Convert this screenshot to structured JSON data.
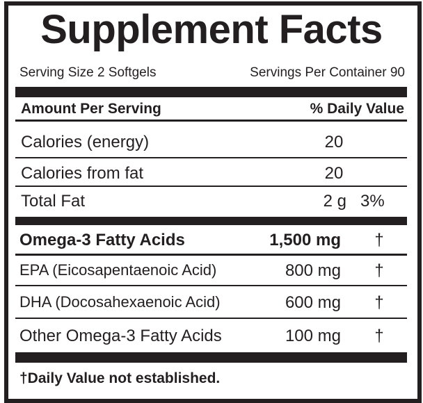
{
  "header": {
    "title": "Supplement Facts",
    "serving_size": "Serving Size 2 Softgels",
    "servings_per_container": "Servings Per Container 90"
  },
  "table": {
    "header": [
      "Amount Per Serving",
      "% Daily Value"
    ],
    "rows": [
      [
        "Calories (energy)",
        "20"
      ],
      [
        "Calories from fat",
        "20"
      ],
      [
        "Total Fat",
        "2 g",
        "3%"
      ],
      [
        "Omega-3 Fatty Acids",
        "1,500 mg",
        "†"
      ],
      [
        "EPA (Eicosapentaenoic Acid)",
        "800 mg",
        "†"
      ],
      [
        "DHA (Docosahexaenoic Acid)",
        "600 mg",
        "†"
      ],
      [
        "Other Omega-3 Fatty Acids",
        "100 mg",
        "†"
      ]
    ]
  },
  "footnote": "†Daily Value not established."
}
